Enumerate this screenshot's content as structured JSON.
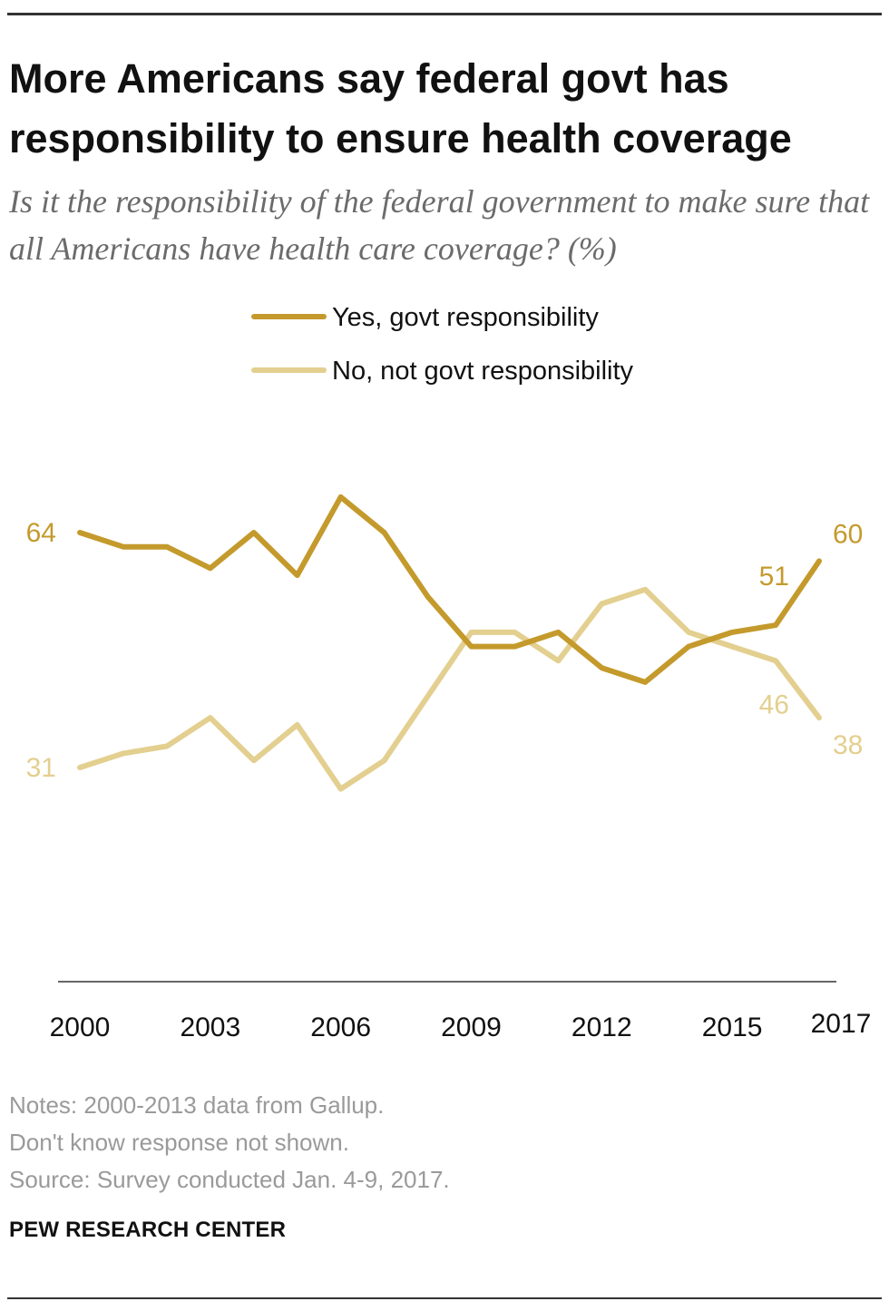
{
  "title": "More Americans say federal govt has responsibility to ensure health coverage",
  "subtitle": "Is it the responsibility of the federal government to make sure that all Americans have health care coverage? (%)",
  "notes": [
    "Notes: 2000-2013 data from Gallup.",
    "Don't know response not shown.",
    "Source: Survey conducted Jan. 4-9, 2017."
  ],
  "source_org": "PEW RESEARCH CENTER",
  "colors": {
    "yes": "#c49a2c",
    "no": "#e3cf8f",
    "axis": "#666666",
    "text": "#111111"
  },
  "chart_data": {
    "type": "line",
    "title": "More Americans say federal govt has responsibility to ensure health coverage",
    "x": [
      2000,
      2001,
      2002,
      2003,
      2004,
      2005,
      2006,
      2007,
      2008,
      2009,
      2010,
      2011,
      2012,
      2013,
      2014,
      2015,
      2016,
      2017
    ],
    "x_tick_labels": [
      "2000",
      "2003",
      "2006",
      "2009",
      "2012",
      "2015",
      "2017"
    ],
    "x_tick_values": [
      2000,
      2003,
      2006,
      2009,
      2012,
      2015,
      2017
    ],
    "ylim": [
      20,
      75
    ],
    "grid": false,
    "legend_placement": "top-center",
    "series": [
      {
        "name": "Yes, govt responsibility",
        "color": "#c49a2c",
        "values": [
          64,
          62,
          62,
          59,
          64,
          58,
          69,
          64,
          55,
          48,
          48,
          50,
          45,
          43,
          48,
          50,
          51,
          60
        ],
        "labels": [
          {
            "x": 2000,
            "text": "64"
          },
          {
            "x": 2016,
            "text": "51"
          },
          {
            "x": 2017,
            "text": "60"
          }
        ]
      },
      {
        "name": "No, not govt responsibility",
        "color": "#e3cf8f",
        "values": [
          31,
          33,
          34,
          38,
          32,
          37,
          28,
          32,
          41,
          50,
          50,
          46,
          54,
          56,
          50,
          48,
          46,
          38
        ],
        "labels": [
          {
            "x": 2000,
            "text": "31"
          },
          {
            "x": 2016,
            "text": "46"
          },
          {
            "x": 2017,
            "text": "38"
          }
        ]
      }
    ]
  }
}
